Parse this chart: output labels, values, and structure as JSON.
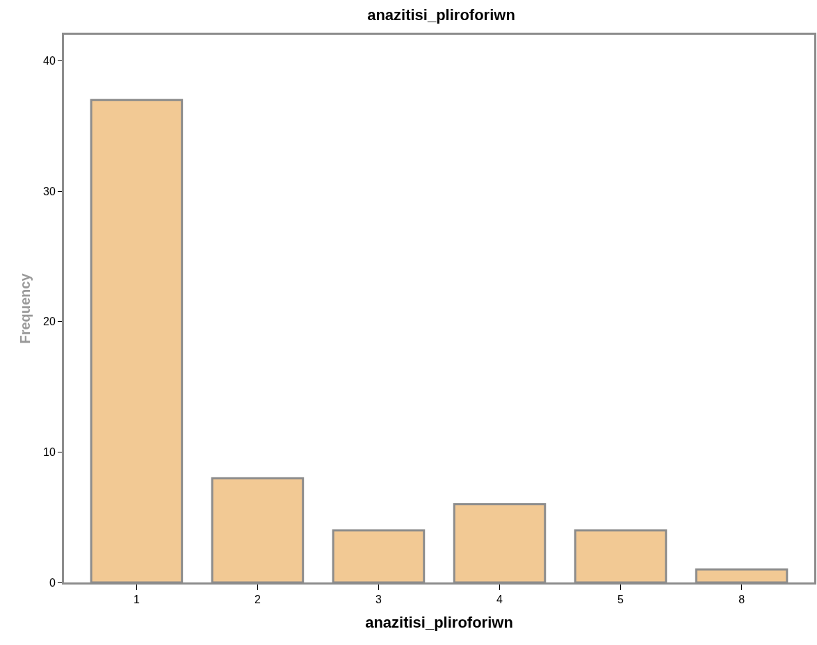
{
  "chart_data": {
    "type": "bar",
    "title": "anazitisi_pliroforiwn",
    "xlabel": "anazitisi_pliroforiwn",
    "ylabel": "Frequency",
    "categories": [
      "1",
      "2",
      "3",
      "4",
      "5",
      "8"
    ],
    "values": [
      37,
      8,
      4,
      6,
      4,
      1
    ],
    "color": "#f2c994",
    "ylim": [
      0,
      42
    ],
    "yticks": [
      0,
      10,
      20,
      30,
      40
    ],
    "grid": false,
    "legend": false
  }
}
